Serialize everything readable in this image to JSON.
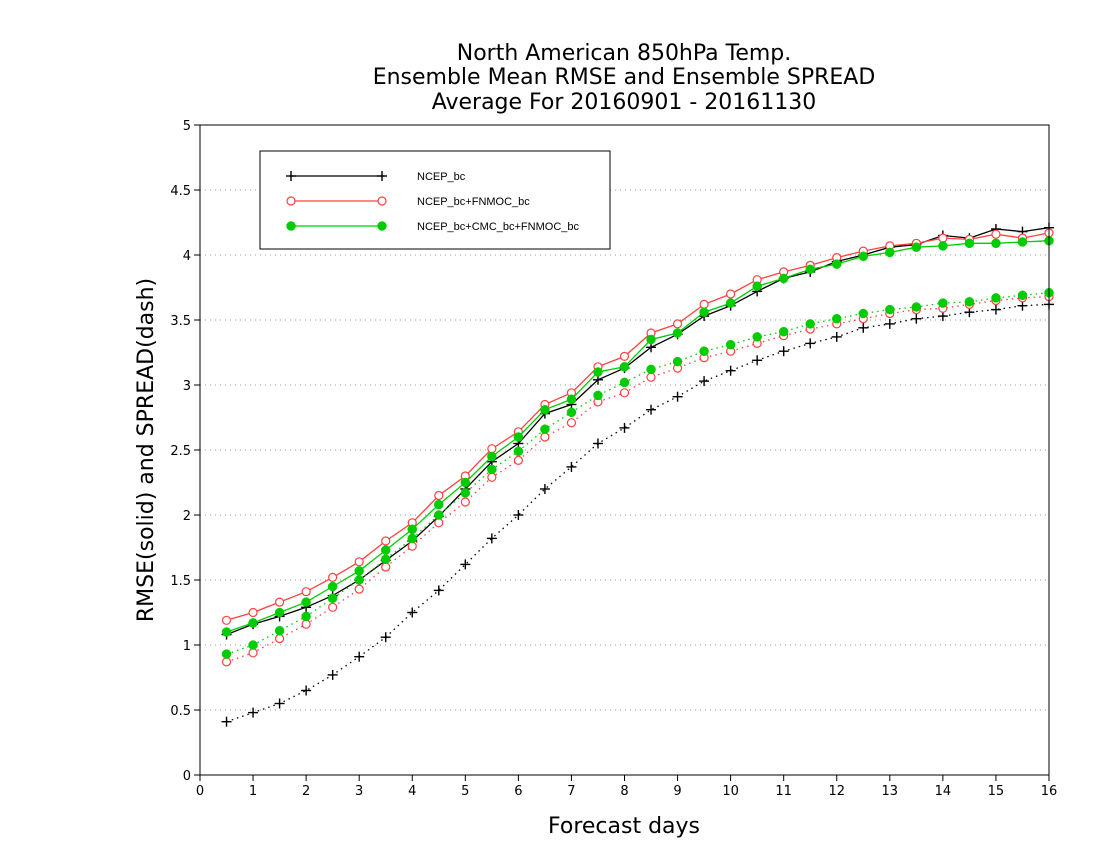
{
  "chart_data": {
    "type": "line",
    "title_lines": [
      "North American 850hPa Temp.",
      "Ensemble Mean RMSE and Ensemble SPREAD",
      "Average For 20160901 - 20161130"
    ],
    "xlabel": "Forecast days",
    "ylabel": "RMSE(solid) and SPREAD(dash)",
    "xlim": [
      0,
      16
    ],
    "ylim": [
      0,
      5
    ],
    "xticks": [
      0,
      1,
      2,
      3,
      4,
      5,
      6,
      7,
      8,
      9,
      10,
      11,
      12,
      13,
      14,
      15,
      16
    ],
    "yticks": [
      0,
      0.5,
      1,
      1.5,
      2,
      2.5,
      3,
      3.5,
      4,
      4.5,
      5
    ],
    "ytick_labels": [
      "0",
      "0.5",
      "1",
      "1.5",
      "2",
      "2.5",
      "3",
      "3.5",
      "4",
      "4.5",
      "5"
    ],
    "grid": true,
    "legend_position": "top-left",
    "x": [
      0.5,
      1,
      1.5,
      2,
      2.5,
      3,
      3.5,
      4,
      4.5,
      5,
      5.5,
      6,
      6.5,
      7,
      7.5,
      8,
      8.5,
      9,
      9.5,
      10,
      10.5,
      11,
      11.5,
      12,
      12.5,
      13,
      13.5,
      14,
      14.5,
      15,
      15.5,
      16
    ],
    "series": [
      {
        "name": "NCEP_bc",
        "color": "#000000",
        "marker": "plus",
        "rmse": [
          1.08,
          1.16,
          1.22,
          1.29,
          1.38,
          1.5,
          1.65,
          1.8,
          1.99,
          2.2,
          2.41,
          2.55,
          2.78,
          2.85,
          3.04,
          3.13,
          3.29,
          3.39,
          3.53,
          3.61,
          3.72,
          3.82,
          3.87,
          3.95,
          4.0,
          4.06,
          4.08,
          4.15,
          4.13,
          4.2,
          4.18,
          4.21
        ],
        "spread": [
          0.41,
          0.48,
          0.55,
          0.65,
          0.77,
          0.91,
          1.06,
          1.25,
          1.42,
          1.62,
          1.82,
          2.0,
          2.2,
          2.37,
          2.55,
          2.67,
          2.81,
          2.91,
          3.03,
          3.11,
          3.19,
          3.26,
          3.32,
          3.37,
          3.44,
          3.47,
          3.51,
          3.53,
          3.56,
          3.58,
          3.61,
          3.62
        ]
      },
      {
        "name": "NCEP_bc+FNMOC_bc",
        "color": "#ff4040",
        "marker": "open-circle",
        "rmse": [
          1.19,
          1.25,
          1.33,
          1.41,
          1.52,
          1.64,
          1.8,
          1.94,
          2.15,
          2.3,
          2.51,
          2.64,
          2.85,
          2.94,
          3.14,
          3.22,
          3.4,
          3.47,
          3.62,
          3.7,
          3.81,
          3.87,
          3.92,
          3.98,
          4.03,
          4.07,
          4.09,
          4.13,
          4.12,
          4.16,
          4.13,
          4.17
        ],
        "spread": [
          0.87,
          0.94,
          1.05,
          1.16,
          1.29,
          1.43,
          1.6,
          1.76,
          1.94,
          2.1,
          2.29,
          2.42,
          2.6,
          2.71,
          2.87,
          2.94,
          3.06,
          3.13,
          3.21,
          3.26,
          3.32,
          3.38,
          3.43,
          3.47,
          3.51,
          3.55,
          3.58,
          3.59,
          3.62,
          3.65,
          3.67,
          3.68
        ]
      },
      {
        "name": "NCEP_bc+CMC_bc+FNMOC_bc",
        "color": "#00cc00",
        "marker": "filled-circle",
        "rmse": [
          1.1,
          1.17,
          1.25,
          1.33,
          1.45,
          1.57,
          1.73,
          1.89,
          2.08,
          2.25,
          2.45,
          2.6,
          2.81,
          2.89,
          3.1,
          3.14,
          3.35,
          3.4,
          3.56,
          3.63,
          3.76,
          3.82,
          3.89,
          3.93,
          3.99,
          4.02,
          4.06,
          4.07,
          4.09,
          4.09,
          4.1,
          4.11
        ],
        "spread": [
          0.93,
          1.0,
          1.11,
          1.22,
          1.36,
          1.5,
          1.66,
          1.82,
          2.0,
          2.17,
          2.35,
          2.49,
          2.66,
          2.79,
          2.92,
          3.02,
          3.12,
          3.18,
          3.26,
          3.31,
          3.37,
          3.41,
          3.47,
          3.51,
          3.55,
          3.58,
          3.6,
          3.63,
          3.64,
          3.67,
          3.69,
          3.71
        ]
      }
    ]
  }
}
